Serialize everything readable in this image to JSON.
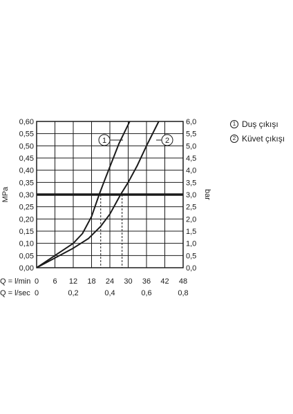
{
  "chart_data": {
    "type": "line",
    "ylabel_left": "MPa",
    "ylabel_right": "bar",
    "x_row_labels": [
      "Q = l/min",
      "Q = l/sec"
    ],
    "x_ticks_lmin": [
      0,
      6,
      12,
      18,
      24,
      30,
      36,
      42,
      48
    ],
    "x_ticks_lmin_labels": [
      "0",
      "6",
      "12",
      "18",
      "24",
      "30",
      "36",
      "42",
      "48"
    ],
    "x_ticks_lsec_labels": [
      "0",
      "0,2",
      "0,4",
      "0,6",
      "0,8"
    ],
    "y_ticks_left": [
      "0,00",
      "0,05",
      "0,10",
      "0,15",
      "0,20",
      "0,25",
      "0,30",
      "0,35",
      "0,40",
      "0,45",
      "0,50",
      "0,55",
      "0,60"
    ],
    "y_ticks_right": [
      "0,0",
      "0,5",
      "1,0",
      "1,5",
      "2,0",
      "2,5",
      "3,0",
      "3,5",
      "4,0",
      "4,5",
      "5,0",
      "5,5",
      "6,0"
    ],
    "xlim": [
      0,
      48
    ],
    "ylim": [
      0,
      0.6
    ],
    "grid": true,
    "reference_line": {
      "y": 0.3
    },
    "series": [
      {
        "name": "Duş çıkışı",
        "marker": "1",
        "x": [
          0,
          6,
          12,
          15,
          18,
          20.5,
          22,
          24.5,
          27,
          30.5
        ],
        "y": [
          0,
          0.05,
          0.1,
          0.14,
          0.21,
          0.3,
          0.35,
          0.43,
          0.51,
          0.6
        ]
      },
      {
        "name": "Küvet çıkışı",
        "marker": "2",
        "x": [
          0,
          6,
          12,
          17,
          21,
          24,
          27.5,
          30,
          33,
          36,
          40
        ],
        "y": [
          0,
          0.04,
          0.08,
          0.12,
          0.17,
          0.22,
          0.3,
          0.35,
          0.42,
          0.5,
          0.6
        ]
      }
    ],
    "guides": [
      {
        "series": "1",
        "x": 21
      },
      {
        "series": "2",
        "x": 28
      }
    ]
  },
  "legend": [
    {
      "marker": "1",
      "label": "Duş çıkışı"
    },
    {
      "marker": "2",
      "label": "Küvet çıkışı"
    }
  ]
}
